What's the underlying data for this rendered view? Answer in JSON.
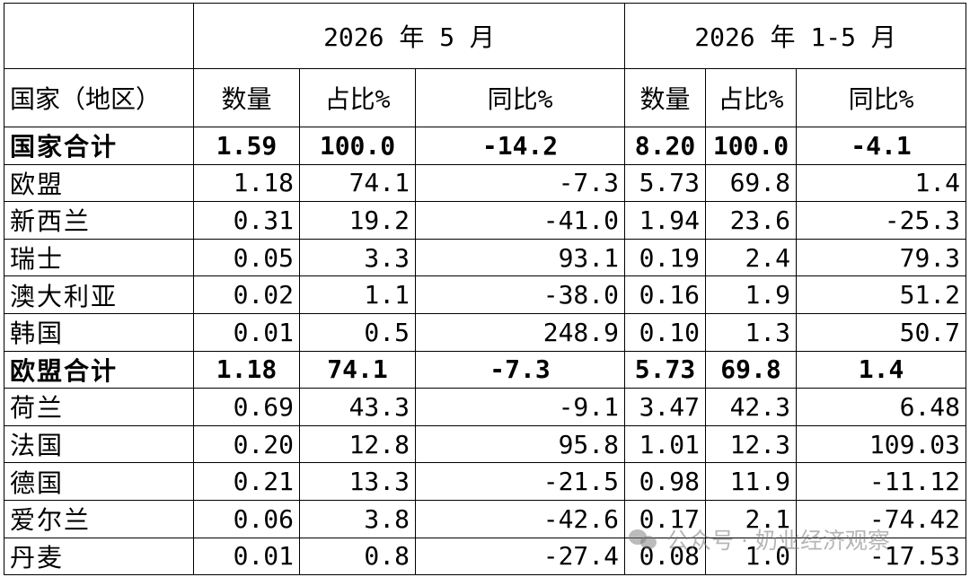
{
  "header": {
    "period_may": "2026 年 5 月",
    "period_jan_may": "2026 年 1-5 月",
    "col_country": "国家（地区）",
    "col_qty": "数量",
    "col_share": "占比%",
    "col_yoy": "同比%"
  },
  "rows": [
    {
      "country": "国家合计",
      "m_qty": "1.59",
      "m_share": "100.0",
      "m_yoy": "-14.2",
      "y_qty": "8.20",
      "y_share": "100.0",
      "y_yoy": "-4.1",
      "bold": true
    },
    {
      "country": "欧盟",
      "m_qty": "1.18",
      "m_share": "74.1",
      "m_yoy": "-7.3",
      "y_qty": "5.73",
      "y_share": "69.8",
      "y_yoy": "1.4"
    },
    {
      "country": "新西兰",
      "m_qty": "0.31",
      "m_share": "19.2",
      "m_yoy": "-41.0",
      "y_qty": "1.94",
      "y_share": "23.6",
      "y_yoy": "-25.3"
    },
    {
      "country": "瑞士",
      "m_qty": "0.05",
      "m_share": "3.3",
      "m_yoy": "93.1",
      "y_qty": "0.19",
      "y_share": "2.4",
      "y_yoy": "79.3"
    },
    {
      "country": "澳大利亚",
      "m_qty": "0.02",
      "m_share": "1.1",
      "m_yoy": "-38.0",
      "y_qty": "0.16",
      "y_share": "1.9",
      "y_yoy": "51.2"
    },
    {
      "country": "韩国",
      "m_qty": "0.01",
      "m_share": "0.5",
      "m_yoy": "248.9",
      "y_qty": "0.10",
      "y_share": "1.3",
      "y_yoy": "50.7"
    },
    {
      "country": "欧盟合计",
      "m_qty": "1.18",
      "m_share": "74.1",
      "m_yoy": "-7.3",
      "y_qty": "5.73",
      "y_share": "69.8",
      "y_yoy": "1.4",
      "bold": true
    },
    {
      "country": "荷兰",
      "m_qty": "0.69",
      "m_share": "43.3",
      "m_yoy": "-9.1",
      "y_qty": "3.47",
      "y_share": "42.3",
      "y_yoy": "6.48"
    },
    {
      "country": "法国",
      "m_qty": "0.20",
      "m_share": "12.8",
      "m_yoy": "95.8",
      "y_qty": "1.01",
      "y_share": "12.3",
      "y_yoy": "109.03"
    },
    {
      "country": "德国",
      "m_qty": "0.21",
      "m_share": "13.3",
      "m_yoy": "-21.5",
      "y_qty": "0.98",
      "y_share": "11.9",
      "y_yoy": "-11.12"
    },
    {
      "country": "爱尔兰",
      "m_qty": "0.06",
      "m_share": "3.8",
      "m_yoy": "-42.6",
      "y_qty": "0.17",
      "y_share": "2.1",
      "y_yoy": "-74.42"
    },
    {
      "country": "丹麦",
      "m_qty": "0.01",
      "m_share": "0.8",
      "m_yoy": "-27.4",
      "y_qty": "0.08",
      "y_share": "1.0",
      "y_yoy": "-17.53"
    }
  ],
  "watermark": "公众号 · 奶业经济观察"
}
